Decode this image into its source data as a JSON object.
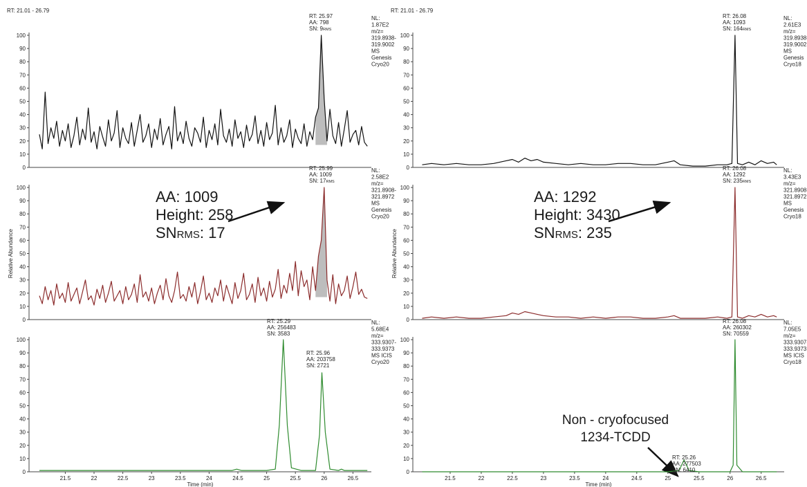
{
  "chart_data": [
    {
      "type": "line",
      "range_label": "RT: 21.01 - 26.79",
      "color": "#111111",
      "xlim": [
        20.87,
        26.82
      ],
      "ylim": [
        0,
        100
      ],
      "yticks": [
        0,
        10,
        20,
        30,
        40,
        50,
        60,
        70,
        80,
        90,
        100
      ],
      "x": [
        21.05,
        21.1,
        21.15,
        21.2,
        21.25,
        21.3,
        21.35,
        21.4,
        21.45,
        21.5,
        21.55,
        21.6,
        21.65,
        21.7,
        21.75,
        21.8,
        21.85,
        21.9,
        21.95,
        22.0,
        22.05,
        22.1,
        22.15,
        22.2,
        22.25,
        22.3,
        22.35,
        22.4,
        22.45,
        22.5,
        22.55,
        22.6,
        22.65,
        22.7,
        22.75,
        22.8,
        22.85,
        22.9,
        22.95,
        23.0,
        23.05,
        23.1,
        23.15,
        23.2,
        23.25,
        23.3,
        23.35,
        23.4,
        23.45,
        23.5,
        23.55,
        23.6,
        23.65,
        23.7,
        23.75,
        23.8,
        23.85,
        23.9,
        23.95,
        24.0,
        24.05,
        24.1,
        24.15,
        24.2,
        24.25,
        24.3,
        24.35,
        24.4,
        24.45,
        24.5,
        24.55,
        24.6,
        24.65,
        24.7,
        24.75,
        24.8,
        24.85,
        24.9,
        24.95,
        25.0,
        25.05,
        25.1,
        25.15,
        25.2,
        25.25,
        25.3,
        25.35,
        25.4,
        25.45,
        25.5,
        25.55,
        25.6,
        25.65,
        25.7,
        25.75,
        25.8,
        25.85,
        25.9,
        25.95,
        26.0,
        26.05,
        26.1,
        26.15,
        26.2,
        26.25,
        26.3,
        26.35,
        26.4,
        26.45,
        26.5,
        26.55,
        26.6,
        26.65,
        26.7,
        26.75
      ],
      "values": [
        25,
        14,
        57,
        18,
        30,
        22,
        35,
        16,
        28,
        20,
        33,
        15,
        24,
        38,
        17,
        29,
        21,
        45,
        19,
        27,
        14,
        31,
        23,
        16,
        36,
        20,
        26,
        43,
        15,
        30,
        22,
        18,
        34,
        16,
        28,
        40,
        19,
        24,
        33,
        15,
        29,
        21,
        37,
        17,
        25,
        31,
        14,
        46,
        20,
        27,
        18,
        35,
        22,
        16,
        30,
        26,
        19,
        38,
        15,
        28,
        21,
        33,
        17,
        44,
        24,
        19,
        29,
        16,
        36,
        22,
        27,
        15,
        32,
        20,
        25,
        39,
        18,
        28,
        16,
        34,
        21,
        26,
        47,
        17,
        30,
        19,
        24,
        36,
        15,
        29,
        22,
        18,
        33,
        16,
        27,
        21,
        38,
        45,
        100,
        52,
        20,
        44,
        24,
        18,
        34,
        16,
        29,
        43,
        19,
        25,
        28,
        17,
        31,
        19,
        16
      ],
      "info": [
        "NL:",
        "1.87E2",
        "m/z=",
        "319.8938-",
        "319.9002",
        "MS",
        "Genesis",
        "Cryo20"
      ],
      "peaks": [
        {
          "lines": [
            "RT: 25.97",
            "AA: 798",
            "SN: 9"
          ],
          "sub": "RMS"
        }
      ]
    },
    {
      "type": "line",
      "color": "#8b2b2b",
      "ylabel": "Relative Abundance",
      "xlim": [
        20.87,
        26.82
      ],
      "ylim": [
        0,
        100
      ],
      "yticks": [
        0,
        10,
        20,
        30,
        40,
        50,
        60,
        70,
        80,
        90,
        100
      ],
      "x": [
        21.05,
        21.1,
        21.15,
        21.2,
        21.25,
        21.3,
        21.35,
        21.4,
        21.45,
        21.5,
        21.55,
        21.6,
        21.65,
        21.7,
        21.75,
        21.8,
        21.85,
        21.9,
        21.95,
        22.0,
        22.05,
        22.1,
        22.15,
        22.2,
        22.25,
        22.3,
        22.35,
        22.4,
        22.45,
        22.5,
        22.55,
        22.6,
        22.65,
        22.7,
        22.75,
        22.8,
        22.85,
        22.9,
        22.95,
        23.0,
        23.05,
        23.1,
        23.15,
        23.2,
        23.25,
        23.3,
        23.35,
        23.4,
        23.45,
        23.5,
        23.55,
        23.6,
        23.65,
        23.7,
        23.75,
        23.8,
        23.85,
        23.9,
        23.95,
        24.0,
        24.05,
        24.1,
        24.15,
        24.2,
        24.25,
        24.3,
        24.35,
        24.4,
        24.45,
        24.5,
        24.55,
        24.6,
        24.65,
        24.7,
        24.75,
        24.8,
        24.85,
        24.9,
        24.95,
        25.0,
        25.05,
        25.1,
        25.15,
        25.2,
        25.25,
        25.3,
        25.35,
        25.4,
        25.45,
        25.5,
        25.55,
        25.6,
        25.65,
        25.7,
        25.75,
        25.8,
        25.85,
        25.9,
        25.95,
        26.0,
        26.05,
        26.1,
        26.15,
        26.2,
        26.25,
        26.3,
        26.35,
        26.4,
        26.45,
        26.5,
        26.55,
        26.6,
        26.65,
        26.7,
        26.75
      ],
      "values": [
        18,
        12,
        25,
        15,
        22,
        11,
        27,
        16,
        20,
        13,
        28,
        14,
        19,
        24,
        12,
        21,
        30,
        15,
        18,
        11,
        23,
        16,
        26,
        13,
        20,
        29,
        14,
        18,
        22,
        12,
        25,
        15,
        19,
        27,
        13,
        34,
        17,
        21,
        14,
        24,
        12,
        20,
        26,
        15,
        31,
        18,
        13,
        22,
        36,
        16,
        19,
        14,
        25,
        17,
        28,
        12,
        21,
        33,
        15,
        20,
        13,
        24,
        18,
        30,
        14,
        26,
        19,
        12,
        28,
        16,
        22,
        35,
        15,
        19,
        27,
        13,
        32,
        18,
        24,
        14,
        29,
        17,
        23,
        38,
        16,
        26,
        20,
        35,
        22,
        44,
        18,
        37,
        25,
        30,
        15,
        40,
        22,
        48,
        60,
        100,
        30,
        14,
        34,
        12,
        27,
        18,
        22,
        33,
        16,
        25,
        36,
        19,
        23,
        17,
        16
      ],
      "info": [
        "NL:",
        "2.58E2",
        "m/z=",
        "321.8908-",
        "321.8972",
        "MS",
        "Genesis",
        "Cryo20"
      ],
      "peaks": [
        {
          "lines": [
            "RT: 25.99",
            "AA: 1009",
            "SN: 17"
          ],
          "sub": "RMS"
        }
      ],
      "callout": [
        [
          "AA: 1009"
        ],
        [
          "Height: 258"
        ],
        [
          "SN",
          "RMS",
          ": 17"
        ]
      ]
    },
    {
      "type": "line",
      "color": "#2e8b2e",
      "xlabel": "Time (min)",
      "xlim": [
        20.87,
        26.82
      ],
      "ylim": [
        0,
        100
      ],
      "yticks": [
        0,
        10,
        20,
        30,
        40,
        50,
        60,
        70,
        80,
        90,
        100
      ],
      "xticks": [
        21.5,
        22.0,
        22.5,
        23.0,
        23.5,
        24.0,
        24.5,
        25.0,
        25.5,
        26.0,
        26.5
      ],
      "x": [
        21.05,
        21.5,
        22,
        22.5,
        23,
        23.5,
        24,
        24.4,
        24.48,
        24.56,
        25,
        25.15,
        25.22,
        25.29,
        25.36,
        25.43,
        25.6,
        25.85,
        25.92,
        25.96,
        26.02,
        26.1,
        26.25,
        26.3,
        26.35,
        26.5,
        26.75
      ],
      "values": [
        1,
        1,
        1,
        1,
        1,
        1,
        1,
        1,
        2,
        1,
        1,
        2,
        35,
        100,
        35,
        3,
        1,
        1,
        28,
        75,
        30,
        2,
        1,
        2,
        1,
        1,
        1
      ],
      "info": [
        "NL:",
        "5.68E4",
        "m/z=",
        "333.9307-",
        "333.9373",
        "MS  ICIS",
        "Cryo20"
      ],
      "peaks": [
        {
          "lines": [
            "RT: 25.29",
            "AA: 256483",
            "SN: 3583"
          ]
        },
        {
          "lines": [
            "RT: 25.96",
            "AA: 203758",
            "SN: 2721"
          ]
        }
      ]
    },
    {
      "type": "line",
      "range_label": "RT: 21.01 - 26.79",
      "color": "#111111",
      "xlim": [
        20.9,
        26.87
      ],
      "ylim": [
        0,
        100
      ],
      "yticks": [
        0,
        10,
        20,
        30,
        40,
        50,
        60,
        70,
        80,
        90,
        100
      ],
      "x": [
        21.05,
        21.2,
        21.4,
        21.6,
        21.8,
        22.0,
        22.2,
        22.4,
        22.5,
        22.6,
        22.7,
        22.8,
        22.9,
        23.0,
        23.2,
        23.4,
        23.6,
        23.8,
        24.0,
        24.2,
        24.4,
        24.6,
        24.8,
        25.0,
        25.1,
        25.2,
        25.4,
        25.6,
        25.8,
        25.95,
        26.03,
        26.08,
        26.12,
        26.2,
        26.3,
        26.4,
        26.5,
        26.6,
        26.7,
        26.75
      ],
      "values": [
        2,
        3,
        2,
        3,
        2,
        2,
        3,
        5,
        6,
        4,
        7,
        5,
        6,
        4,
        3,
        2,
        3,
        2,
        2,
        3,
        3,
        2,
        2,
        4,
        5,
        2,
        1,
        1,
        2,
        2,
        3,
        100,
        3,
        2,
        4,
        2,
        5,
        3,
        4,
        2
      ],
      "info": [
        "NL:",
        "2.61E3",
        "m/z=",
        "319.8938-",
        "319.9002",
        "MS",
        "Genesis",
        "Cryo18"
      ],
      "peaks": [
        {
          "lines": [
            "RT: 26.08",
            "AA: 1093",
            "SN: 164"
          ],
          "sub": "RMS"
        }
      ]
    },
    {
      "type": "line",
      "color": "#8b2b2b",
      "ylabel": "Relative Abundance",
      "xlim": [
        20.9,
        26.87
      ],
      "ylim": [
        0,
        100
      ],
      "yticks": [
        0,
        10,
        20,
        30,
        40,
        50,
        60,
        70,
        80,
        90,
        100
      ],
      "x": [
        21.05,
        21.2,
        21.4,
        21.6,
        21.8,
        22.0,
        22.2,
        22.4,
        22.5,
        22.6,
        22.7,
        22.8,
        22.9,
        23.0,
        23.2,
        23.4,
        23.6,
        23.8,
        24.0,
        24.2,
        24.4,
        24.6,
        24.8,
        25.0,
        25.1,
        25.2,
        25.4,
        25.6,
        25.8,
        25.95,
        26.03,
        26.08,
        26.12,
        26.2,
        26.3,
        26.4,
        26.5,
        26.6,
        26.7,
        26.75
      ],
      "values": [
        1,
        2,
        1,
        2,
        1,
        1,
        2,
        3,
        5,
        4,
        6,
        5,
        4,
        3,
        2,
        2,
        1,
        2,
        1,
        2,
        2,
        1,
        1,
        2,
        3,
        1,
        1,
        1,
        2,
        1,
        2,
        100,
        2,
        1,
        3,
        2,
        4,
        2,
        3,
        2
      ],
      "info": [
        "NL:",
        "3.43E3",
        "m/z=",
        "321.8908-",
        "321.8972",
        "MS",
        "Genesis",
        "Cryo18"
      ],
      "peaks": [
        {
          "lines": [
            "RT: 26.08",
            "AA: 1292",
            "SN: 235"
          ],
          "sub": "RMS"
        }
      ],
      "callout": [
        [
          "AA: 1292"
        ],
        [
          "Height: 3430"
        ],
        [
          "SN",
          "RMS",
          ": 235"
        ]
      ]
    },
    {
      "type": "line",
      "color": "#2e8b2e",
      "xlabel": "Time (min)",
      "xlim": [
        20.9,
        26.87
      ],
      "ylim": [
        0,
        100
      ],
      "yticks": [
        0,
        10,
        20,
        30,
        40,
        50,
        60,
        70,
        80,
        90,
        100
      ],
      "xticks": [
        21.5,
        22.0,
        22.5,
        23.0,
        23.5,
        24.0,
        24.5,
        25.0,
        25.5,
        26.0,
        26.5
      ],
      "x": [
        21.05,
        22,
        23,
        24,
        25,
        25.18,
        25.22,
        25.26,
        25.3,
        25.34,
        25.5,
        26,
        26.05,
        26.08,
        26.11,
        26.2,
        26.75
      ],
      "values": [
        0,
        0,
        0,
        0,
        0,
        1,
        5,
        9,
        5,
        1,
        0,
        0,
        5,
        100,
        5,
        0,
        0
      ],
      "info": [
        "NL:",
        "7.05E5",
        "m/z=",
        "333.9307-",
        "333.9373",
        "MS  ICIS",
        "Cryo18"
      ],
      "peaks": [
        {
          "lines": [
            "RT: 26.08",
            "AA: 260302",
            "SN: 70559"
          ]
        },
        {
          "lines": [
            "RT: 25.26",
            "AA: 277503",
            "SN: 6410"
          ]
        }
      ],
      "callout": [
        [
          "Non - cryofocused"
        ],
        [
          "1234-TCDD"
        ]
      ]
    }
  ]
}
